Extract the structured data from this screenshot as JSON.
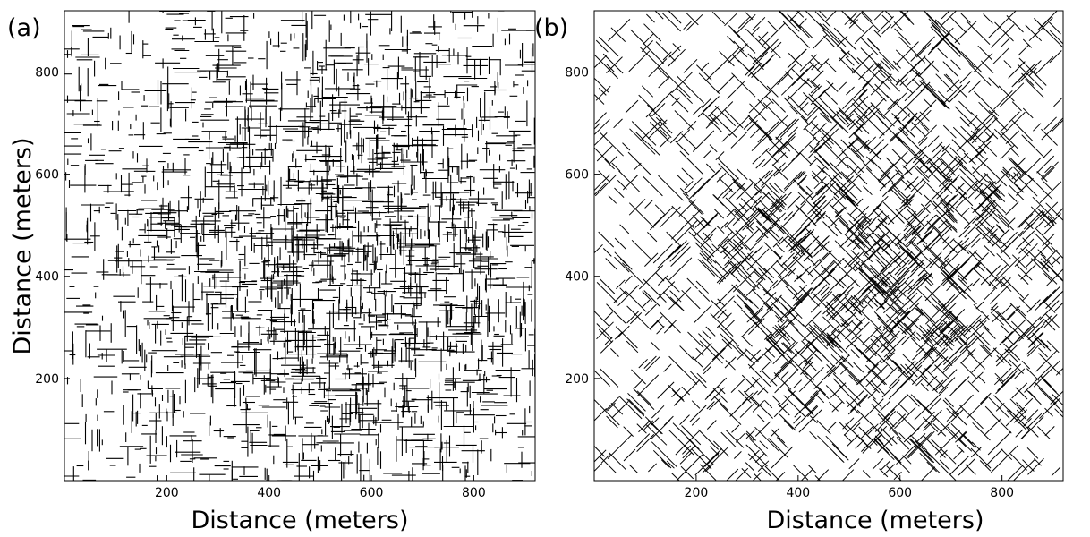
{
  "chart_data": [
    {
      "type": "scatter",
      "mark": "line-segments",
      "panel_label": "(a)",
      "title": "",
      "xlabel": "Distance (meters)",
      "ylabel": "Distance (meters)",
      "xlim": [
        0,
        920
      ],
      "ylim": [
        0,
        920
      ],
      "xticks": [
        200,
        400,
        600,
        800
      ],
      "yticks": [
        200,
        400,
        600,
        800
      ],
      "segment_orientations_deg": [
        0,
        90
      ],
      "segment_length_range_m": [
        10,
        60
      ],
      "segment_count_approx": 2600,
      "density_peak_m": [
        560,
        420
      ],
      "grid": false
    },
    {
      "type": "scatter",
      "mark": "line-segments",
      "panel_label": "(b)",
      "title": "",
      "xlabel": "Distance (meters)",
      "ylabel": "",
      "xlim": [
        0,
        920
      ],
      "ylim": [
        0,
        920
      ],
      "xticks": [
        200,
        400,
        600,
        800
      ],
      "yticks": [
        200,
        400,
        600,
        800
      ],
      "segment_orientations_deg": [
        45,
        135
      ],
      "segment_length_range_m": [
        20,
        75
      ],
      "segment_count_approx": 2100,
      "density_peak_m": [
        560,
        420
      ],
      "grid": false
    }
  ]
}
